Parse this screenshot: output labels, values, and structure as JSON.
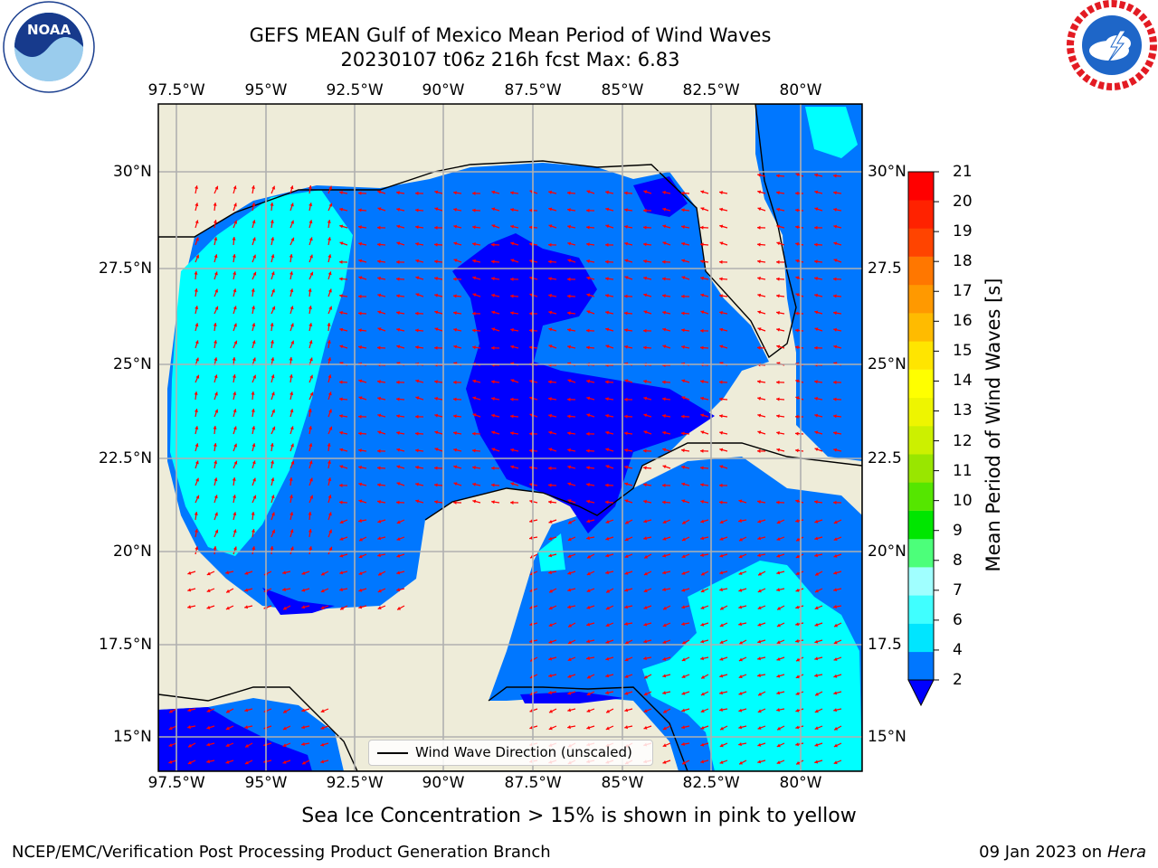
{
  "header": {
    "title_line1": "GEFS MEAN Gulf of Mexico Mean Period of Wind Waves",
    "title_line2": "20230107 t06z 216h fcst   Max: 6.83"
  },
  "map": {
    "lon_labels": [
      "97.5°W",
      "95°W",
      "92.5°W",
      "90°W",
      "87.5°W",
      "85°W",
      "82.5°W",
      "80°W"
    ],
    "lat_labels_left": [
      "30°N",
      "27.5°N",
      "25°N",
      "22.5°N",
      "20°N",
      "17.5°N",
      "15°N"
    ],
    "lat_labels_right": [
      "30°N",
      "27.5",
      "25°N",
      "22.5",
      "20°N",
      "17.5",
      "15°N"
    ],
    "legend_text": "Wind Wave Direction (unscaled)",
    "land_color": "#eeecd9",
    "arrow_color": "#ff0000"
  },
  "colorbar": {
    "label": "Mean Period of Wind Waves [s]",
    "ticks": [
      "2",
      "4",
      "6",
      "7",
      "8",
      "9",
      "10",
      "11",
      "12",
      "13",
      "14",
      "15",
      "16",
      "17",
      "18",
      "19",
      "20",
      "21"
    ],
    "colors": [
      "#0077ff",
      "#00e5ff",
      "#40ffff",
      "#a0ffff",
      "#4cff7a",
      "#00e600",
      "#55e600",
      "#99e600",
      "#ccf000",
      "#eef500",
      "#ffff00",
      "#ffe500",
      "#ffbb00",
      "#ff9900",
      "#ff7700",
      "#ff4400",
      "#ff2200",
      "#ff0000"
    ],
    "extend_color": "#0000ff"
  },
  "notes": {
    "sea_ice": "Sea Ice Concentration > 15% is shown in pink to yellow",
    "footer_left": "NCEP/EMC/Verification Post Processing Product Generation Branch",
    "footer_date": "09 Jan 2023 on",
    "footer_machine": "Hera"
  },
  "logos": {
    "left": "noaa-logo",
    "right": "national-weather-service-logo"
  }
}
